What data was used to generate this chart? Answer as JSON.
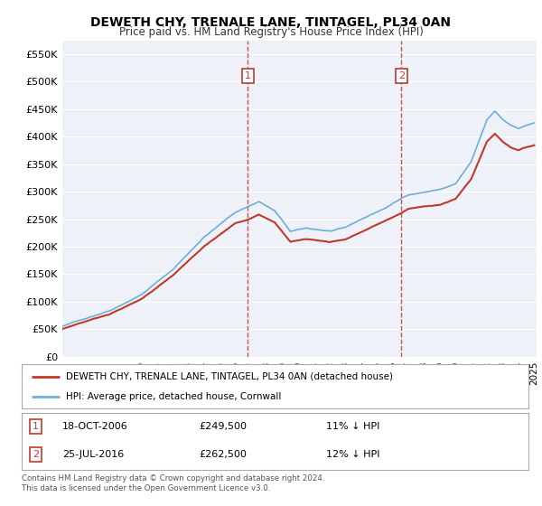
{
  "title": "DEWETH CHY, TRENALE LANE, TINTAGEL, PL34 0AN",
  "subtitle": "Price paid vs. HM Land Registry's House Price Index (HPI)",
  "legend_line1": "DEWETH CHY, TRENALE LANE, TINTAGEL, PL34 0AN (detached house)",
  "legend_line2": "HPI: Average price, detached house, Cornwall",
  "sale1_date": "18-OCT-2006",
  "sale1_price": 249500,
  "sale1_label": "11% ↓ HPI",
  "sale2_date": "25-JUL-2016",
  "sale2_price": 262500,
  "sale2_label": "12% ↓ HPI",
  "hpi_color": "#6dafd6",
  "price_color": "#c0392b",
  "vline_color": "#c0392b",
  "background_color": "#eef2f8",
  "yticks": [
    0,
    50000,
    100000,
    150000,
    200000,
    250000,
    300000,
    350000,
    400000,
    450000,
    500000,
    550000
  ],
  "ytick_labels": [
    "£0",
    "£50K",
    "£100K",
    "£150K",
    "£200K",
    "£250K",
    "£300K",
    "£350K",
    "£400K",
    "£450K",
    "£500K",
    "£550K"
  ],
  "copyright_text": "Contains HM Land Registry data © Crown copyright and database right 2024.\nThis data is licensed under the Open Government Licence v3.0.",
  "footnote_color": "#555555",
  "sale1_year": 2006.8,
  "sale2_year": 2016.55,
  "hpi_anchors_t": [
    1995.0,
    1996.0,
    1998.0,
    2000.0,
    2002.0,
    2004.0,
    2006.0,
    2007.5,
    2008.5,
    2009.5,
    2010.5,
    2012.0,
    2013.0,
    2014.0,
    2015.5,
    2017.0,
    2018.0,
    2019.0,
    2020.0,
    2021.0,
    2022.0,
    2022.5,
    2023.0,
    2023.5,
    2024.0,
    2024.5,
    2025.0
  ],
  "hpi_anchors_v": [
    55000,
    65000,
    85000,
    115000,
    160000,
    220000,
    265000,
    285000,
    268000,
    230000,
    235000,
    230000,
    235000,
    250000,
    270000,
    295000,
    300000,
    305000,
    315000,
    355000,
    430000,
    445000,
    430000,
    420000,
    415000,
    420000,
    425000
  ],
  "price_anchors_t": [
    1995.0,
    1996.0,
    1998.0,
    2000.0,
    2002.0,
    2004.0,
    2006.0,
    2006.8,
    2007.5,
    2008.5,
    2009.5,
    2010.5,
    2012.0,
    2013.0,
    2014.0,
    2015.5,
    2016.55,
    2017.0,
    2018.0,
    2019.0,
    2020.0,
    2021.0,
    2022.0,
    2022.5,
    2023.0,
    2023.5,
    2024.0,
    2024.5,
    2025.0
  ],
  "price_anchors_v": [
    50000,
    60000,
    78000,
    105000,
    148000,
    200000,
    242000,
    249500,
    260000,
    245000,
    210000,
    215000,
    210000,
    215000,
    228000,
    248000,
    262500,
    270000,
    274000,
    278000,
    288000,
    325000,
    393000,
    407000,
    393000,
    383000,
    378000,
    383000,
    387000
  ]
}
